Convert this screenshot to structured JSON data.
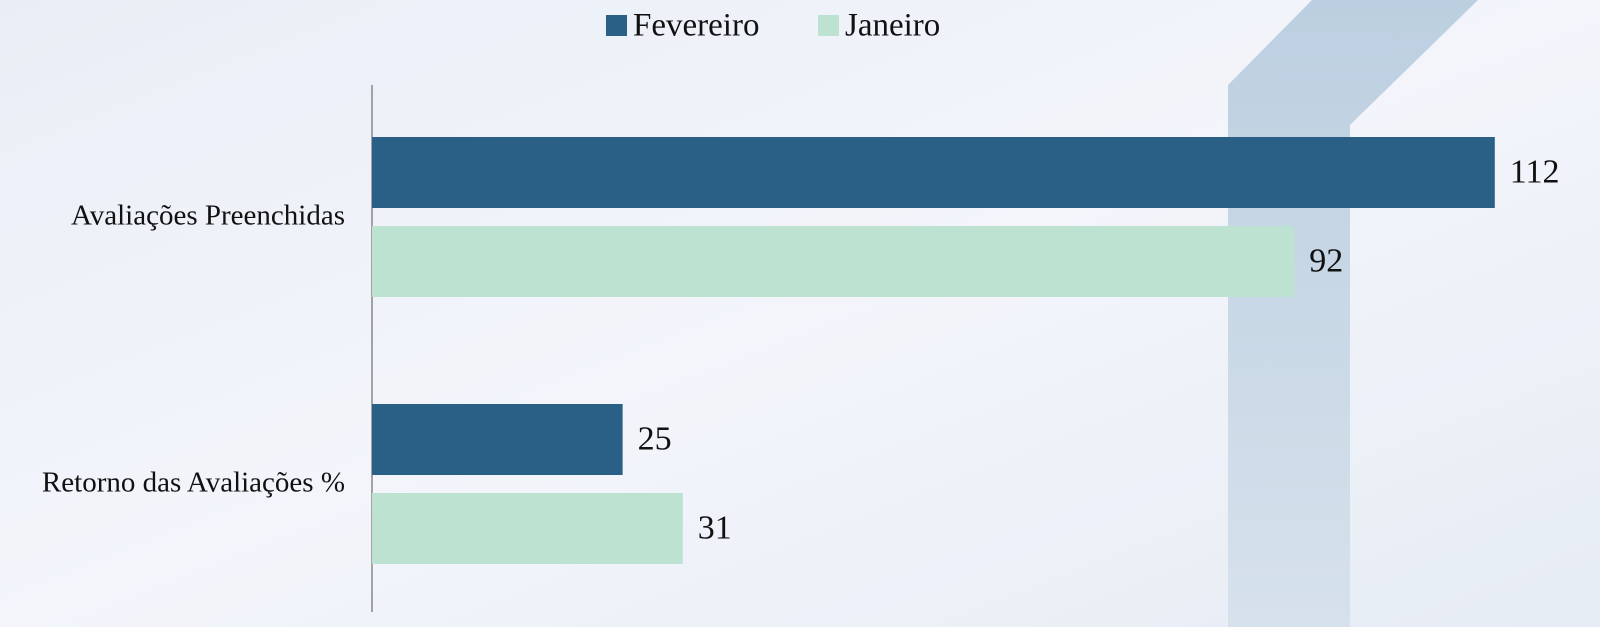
{
  "chart_data": {
    "type": "bar",
    "orientation": "horizontal",
    "categories": [
      "Avaliações Preenchidas",
      "Retorno das Avaliações %"
    ],
    "series": [
      {
        "name": "Fevereiro",
        "color": "#2a6085",
        "values": [
          112,
          25
        ]
      },
      {
        "name": "Janeiro",
        "color": "#bde2d2",
        "values": [
          92,
          31
        ]
      }
    ],
    "xlim": [
      0,
      120
    ],
    "legend": "top"
  }
}
